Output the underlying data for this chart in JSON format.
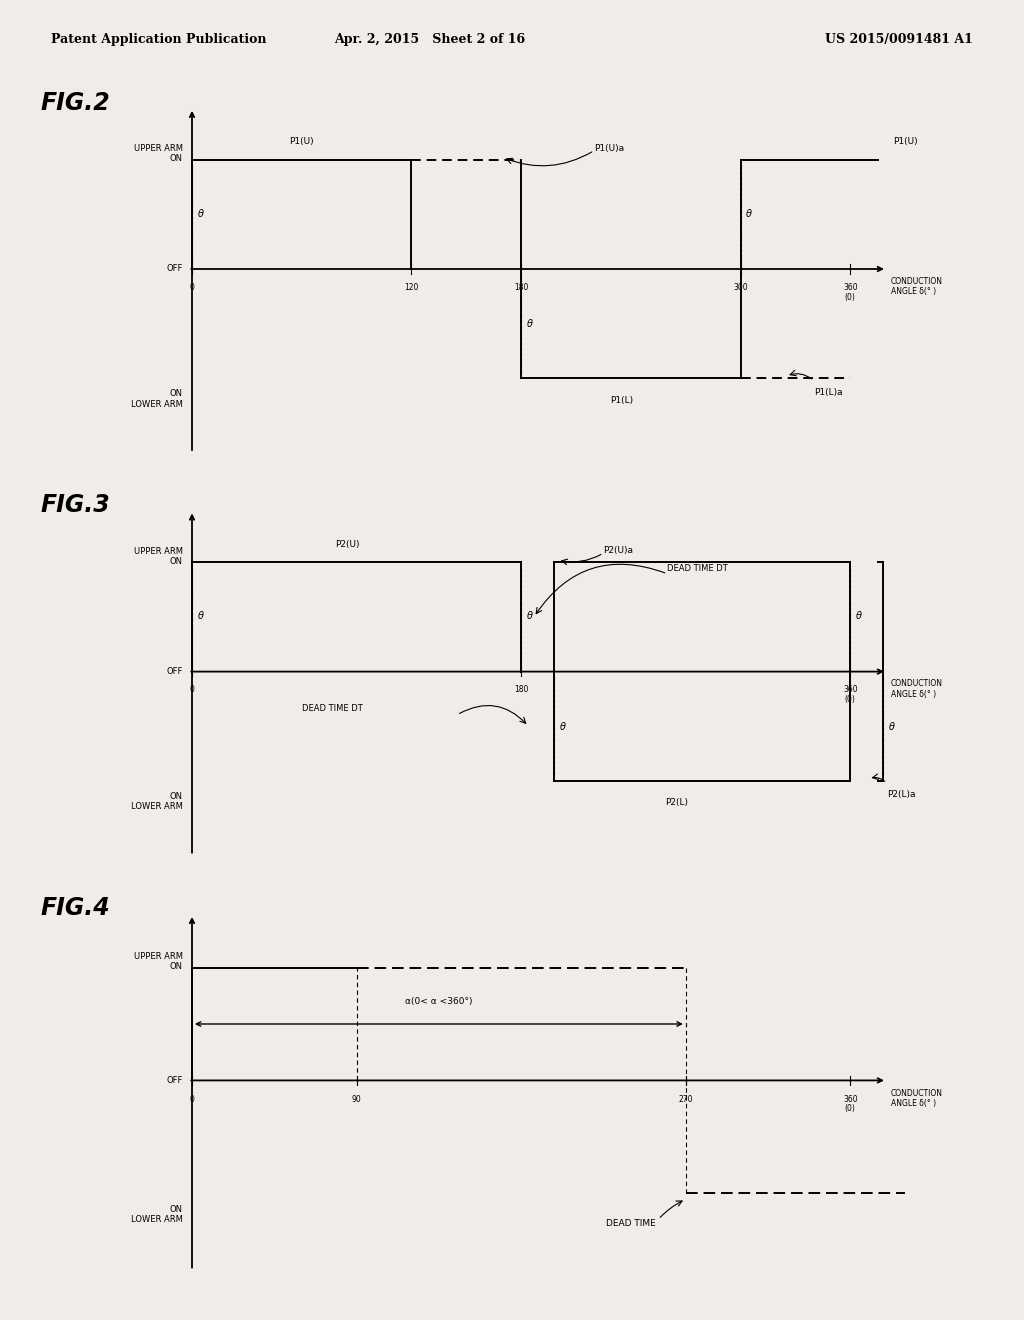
{
  "header_left": "Patent Application Publication",
  "header_mid": "Apr. 2, 2015   Sheet 2 of 16",
  "header_right": "US 2015/0091481 A1",
  "bg_color": "#f0ede8",
  "fig2": {
    "xticks": [
      [
        0,
        "0"
      ],
      [
        120,
        "120"
      ],
      [
        180,
        "180"
      ],
      [
        300,
        "300"
      ],
      [
        360,
        "360\n(0)"
      ]
    ],
    "xlabel": "CONDUCTION\nANGLE δ(° )"
  },
  "fig3": {
    "xticks": [
      [
        0,
        "0"
      ],
      [
        180,
        "180"
      ],
      [
        360,
        "360\n(0)"
      ]
    ],
    "xlabel": "CONDUCTION\nANGLE δ(° )"
  },
  "fig4": {
    "xticks": [
      [
        0,
        "0"
      ],
      [
        90,
        "90"
      ],
      [
        270,
        "270"
      ],
      [
        360,
        "360\n(0)"
      ]
    ],
    "xlabel": "CONDUCTION\nANGLE δ(° )"
  }
}
